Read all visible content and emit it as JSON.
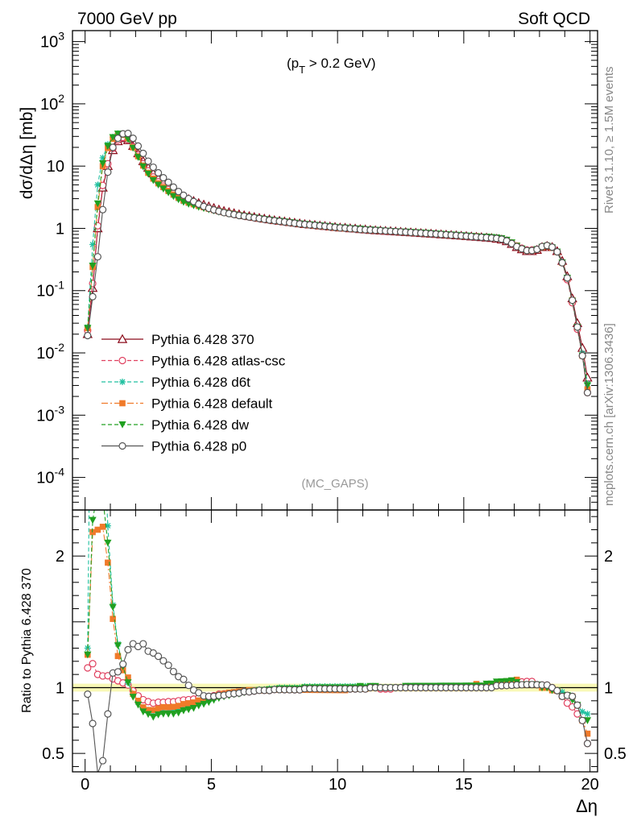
{
  "header": {
    "left": "7000 GeV pp",
    "right": "Soft QCD"
  },
  "side_labels": {
    "rivet": "Rivet 3.1.10, ≥ 1.5M events",
    "mcplots": "mcplots.cern.ch [arXiv:1306.3436]"
  },
  "chart_data": [
    {
      "type": "line",
      "panel": "main",
      "annotation": "(p_T > 0.2 GeV)",
      "watermark": "(MC_GAPS)",
      "ylabel": "dσ/dΔη [mb]",
      "yscale": "log",
      "ylim": [
        3e-05,
        1500
      ],
      "xlim": [
        -0.5,
        20.3
      ],
      "x_ticks": [
        0,
        5,
        10,
        15,
        20
      ],
      "y_ticks": [
        {
          "v": 0.0001,
          "label": "10^-4"
        },
        {
          "v": 0.001,
          "label": "10^-3"
        },
        {
          "v": 0.01,
          "label": "10^-2"
        },
        {
          "v": 0.1,
          "label": "10^-1"
        },
        {
          "v": 1,
          "label": "1"
        },
        {
          "v": 10,
          "label": "10"
        },
        {
          "v": 100,
          "label": "10^2"
        },
        {
          "v": 1000,
          "label": "10^3"
        }
      ],
      "x": [
        0.1,
        0.3,
        0.5,
        0.7,
        0.9,
        1.1,
        1.3,
        1.5,
        1.7,
        1.9,
        2.1,
        2.3,
        2.5,
        2.7,
        2.9,
        3.1,
        3.3,
        3.5,
        3.7,
        3.9,
        4.1,
        4.3,
        4.5,
        4.7,
        4.9,
        5.1,
        5.3,
        5.5,
        5.7,
        5.9,
        6.1,
        6.3,
        6.5,
        6.7,
        6.9,
        7.1,
        7.3,
        7.5,
        7.7,
        7.9,
        8.1,
        8.3,
        8.5,
        8.7,
        8.9,
        9.1,
        9.3,
        9.5,
        9.7,
        9.9,
        10.1,
        10.3,
        10.5,
        10.7,
        10.9,
        11.1,
        11.3,
        11.5,
        11.7,
        11.9,
        12.1,
        12.3,
        12.5,
        12.7,
        12.9,
        13.1,
        13.3,
        13.5,
        13.7,
        13.9,
        14.1,
        14.3,
        14.5,
        14.7,
        14.9,
        15.1,
        15.3,
        15.5,
        15.7,
        15.9,
        16.1,
        16.3,
        16.5,
        16.7,
        16.9,
        17.1,
        17.3,
        17.5,
        17.7,
        17.9,
        18.1,
        18.3,
        18.5,
        18.7,
        18.9,
        19.1,
        19.3,
        19.5,
        19.7,
        19.9
      ],
      "series": [
        {
          "name": "Pythia 6.428 370",
          "color": "#8b0a1a",
          "marker": "triangle-open",
          "dash": "solid",
          "values": [
            0.02,
            0.11,
            1.0,
            4.5,
            10,
            18,
            25,
            28,
            26,
            21,
            16,
            12,
            9.4,
            7.6,
            6.3,
            5.4,
            4.7,
            4.1,
            3.6,
            3.2,
            2.95,
            2.75,
            2.55,
            2.4,
            2.25,
            2.12,
            2.0,
            1.9,
            1.82,
            1.75,
            1.68,
            1.62,
            1.57,
            1.52,
            1.47,
            1.43,
            1.39,
            1.35,
            1.32,
            1.29,
            1.26,
            1.23,
            1.2,
            1.17,
            1.15,
            1.13,
            1.11,
            1.09,
            1.07,
            1.05,
            1.03,
            1.02,
            1.0,
            0.99,
            0.97,
            0.96,
            0.94,
            0.93,
            0.92,
            0.91,
            0.9,
            0.89,
            0.88,
            0.87,
            0.86,
            0.85,
            0.84,
            0.83,
            0.82,
            0.81,
            0.8,
            0.79,
            0.78,
            0.77,
            0.76,
            0.75,
            0.74,
            0.73,
            0.72,
            0.71,
            0.7,
            0.68,
            0.66,
            0.62,
            0.56,
            0.5,
            0.46,
            0.43,
            0.43,
            0.45,
            0.5,
            0.52,
            0.5,
            0.43,
            0.3,
            0.17,
            0.075,
            0.03,
            0.012,
            0.004
          ]
        },
        {
          "name": "Pythia 6.428 atlas-csc",
          "color": "#e0405f",
          "marker": "circle-open",
          "dash": "dashed",
          "values": [
            0.023,
            0.13,
            1.1,
            4.9,
            10.9,
            19.2,
            26.3,
            29.0,
            26.5,
            20.5,
            15.0,
            10.9,
            8.4,
            6.7,
            5.6,
            4.8,
            4.2,
            3.66,
            3.24,
            2.9,
            2.68,
            2.51,
            2.35,
            2.22,
            2.1,
            1.99,
            1.9,
            1.81,
            1.74,
            1.68,
            1.62,
            1.57,
            1.52,
            1.48,
            1.44,
            1.4,
            1.36,
            1.33,
            1.3,
            1.27,
            1.24,
            1.21,
            1.18,
            1.16,
            1.14,
            1.12,
            1.1,
            1.08,
            1.06,
            1.04,
            1.02,
            1.01,
            0.99,
            0.98,
            0.97,
            0.95,
            0.94,
            0.93,
            0.91,
            0.9,
            0.89,
            0.89,
            0.88,
            0.87,
            0.86,
            0.85,
            0.84,
            0.83,
            0.82,
            0.81,
            0.8,
            0.79,
            0.78,
            0.77,
            0.76,
            0.75,
            0.74,
            0.73,
            0.72,
            0.71,
            0.71,
            0.69,
            0.67,
            0.64,
            0.58,
            0.52,
            0.48,
            0.45,
            0.45,
            0.46,
            0.51,
            0.53,
            0.5,
            0.42,
            0.28,
            0.15,
            0.064,
            0.024,
            0.009,
            0.0023
          ]
        },
        {
          "name": "Pythia 6.428 d6t",
          "color": "#20c0a0",
          "marker": "star",
          "dash": "dashed",
          "values": [
            0.026,
            0.55,
            5.0,
            13.6,
            22.3,
            29.3,
            33.3,
            32.5,
            27.0,
            20.0,
            14.2,
            10.2,
            7.8,
            6.2,
            5.2,
            4.5,
            3.9,
            3.4,
            3.0,
            2.7,
            2.52,
            2.39,
            2.24,
            2.14,
            2.04,
            1.95,
            1.87,
            1.79,
            1.73,
            1.68,
            1.62,
            1.58,
            1.53,
            1.49,
            1.45,
            1.41,
            1.38,
            1.34,
            1.32,
            1.29,
            1.26,
            1.23,
            1.2,
            1.18,
            1.16,
            1.14,
            1.12,
            1.1,
            1.08,
            1.06,
            1.04,
            1.03,
            1.01,
            1.0,
            0.98,
            0.97,
            0.95,
            0.94,
            0.92,
            0.91,
            0.9,
            0.89,
            0.88,
            0.88,
            0.87,
            0.86,
            0.85,
            0.84,
            0.83,
            0.82,
            0.81,
            0.8,
            0.79,
            0.78,
            0.77,
            0.76,
            0.75,
            0.74,
            0.73,
            0.72,
            0.71,
            0.7,
            0.68,
            0.64,
            0.58,
            0.51,
            0.47,
            0.44,
            0.44,
            0.46,
            0.5,
            0.52,
            0.49,
            0.42,
            0.29,
            0.16,
            0.069,
            0.026,
            0.0098,
            0.0032
          ]
        },
        {
          "name": "Pythia 6.428 default",
          "color": "#f07a2a",
          "marker": "square",
          "dash": "dashdot",
          "values": [
            0.025,
            0.24,
            2.2,
            10.0,
            19.5,
            27.4,
            31.0,
            31.7,
            28.0,
            20.0,
            14.4,
            10.2,
            7.8,
            6.3,
            5.3,
            4.6,
            4.0,
            3.5,
            3.1,
            2.8,
            2.6,
            2.44,
            2.3,
            2.19,
            2.07,
            1.97,
            1.89,
            1.81,
            1.75,
            1.69,
            1.63,
            1.58,
            1.54,
            1.49,
            1.44,
            1.4,
            1.37,
            1.33,
            1.3,
            1.27,
            1.24,
            1.21,
            1.18,
            1.15,
            1.13,
            1.11,
            1.09,
            1.07,
            1.05,
            1.03,
            1.01,
            1.0,
            0.99,
            0.98,
            0.96,
            0.95,
            0.94,
            0.93,
            0.92,
            0.91,
            0.9,
            0.89,
            0.88,
            0.87,
            0.86,
            0.85,
            0.84,
            0.83,
            0.82,
            0.81,
            0.8,
            0.79,
            0.78,
            0.77,
            0.76,
            0.75,
            0.75,
            0.75,
            0.73,
            0.72,
            0.72,
            0.7,
            0.68,
            0.65,
            0.59,
            0.53,
            0.47,
            0.44,
            0.44,
            0.46,
            0.5,
            0.52,
            0.49,
            0.42,
            0.28,
            0.16,
            0.07,
            0.026,
            0.009,
            0.0026
          ]
        },
        {
          "name": "Pythia 6.428 dw",
          "color": "#20a020",
          "marker": "triangle-down",
          "dash": "dashed",
          "values": [
            0.025,
            0.25,
            2.5,
            11.0,
            21.0,
            29.0,
            33.0,
            32.5,
            27.0,
            19.5,
            13.9,
            9.8,
            7.5,
            5.9,
            5.0,
            4.32,
            3.76,
            3.28,
            2.91,
            2.64,
            2.46,
            2.32,
            2.2,
            2.1,
            2.0,
            1.92,
            1.84,
            1.77,
            1.71,
            1.66,
            1.6,
            1.56,
            1.52,
            1.48,
            1.44,
            1.4,
            1.37,
            1.33,
            1.31,
            1.28,
            1.25,
            1.22,
            1.19,
            1.17,
            1.15,
            1.13,
            1.11,
            1.09,
            1.07,
            1.05,
            1.03,
            1.02,
            1.0,
            0.99,
            0.98,
            0.96,
            0.95,
            0.94,
            0.92,
            0.91,
            0.9,
            0.89,
            0.88,
            0.88,
            0.87,
            0.86,
            0.85,
            0.84,
            0.83,
            0.82,
            0.81,
            0.8,
            0.79,
            0.78,
            0.77,
            0.76,
            0.75,
            0.74,
            0.73,
            0.73,
            0.72,
            0.71,
            0.69,
            0.65,
            0.59,
            0.52,
            0.47,
            0.44,
            0.44,
            0.46,
            0.5,
            0.52,
            0.49,
            0.42,
            0.28,
            0.16,
            0.068,
            0.026,
            0.009,
            0.003
          ]
        },
        {
          "name": "Pythia 6.428 p0",
          "color": "#555555",
          "marker": "circle-open",
          "dash": "solid",
          "values": [
            0.019,
            0.08,
            0.35,
            2.0,
            8.0,
            20.0,
            28.0,
            33.0,
            33.5,
            28.0,
            21.0,
            16.0,
            12.0,
            9.6,
            7.8,
            6.5,
            5.5,
            4.6,
            3.9,
            3.4,
            3.0,
            2.7,
            2.45,
            2.25,
            2.1,
            1.98,
            1.88,
            1.79,
            1.73,
            1.67,
            1.61,
            1.57,
            1.52,
            1.48,
            1.44,
            1.4,
            1.36,
            1.33,
            1.3,
            1.27,
            1.24,
            1.21,
            1.18,
            1.16,
            1.14,
            1.12,
            1.1,
            1.08,
            1.06,
            1.04,
            1.02,
            1.01,
            0.99,
            0.98,
            0.96,
            0.95,
            0.94,
            0.93,
            0.92,
            0.91,
            0.9,
            0.89,
            0.88,
            0.87,
            0.86,
            0.85,
            0.84,
            0.83,
            0.82,
            0.81,
            0.8,
            0.79,
            0.78,
            0.77,
            0.76,
            0.75,
            0.74,
            0.73,
            0.72,
            0.71,
            0.7,
            0.69,
            0.67,
            0.63,
            0.57,
            0.51,
            0.47,
            0.44,
            0.44,
            0.46,
            0.51,
            0.53,
            0.5,
            0.42,
            0.28,
            0.16,
            0.07,
            0.026,
            0.009,
            0.0023
          ]
        }
      ]
    },
    {
      "type": "line",
      "panel": "ratio",
      "ylabel": "Ratio to Pythia 6.428 370",
      "xlabel": "Δη",
      "ylim": [
        0.36,
        2.35
      ],
      "y_ticks": [
        {
          "v": 0.5,
          "label": "0.5"
        },
        {
          "v": 1,
          "label": "1"
        },
        {
          "v": 2,
          "label": "2"
        }
      ],
      "reference": 1
    }
  ],
  "colors": {
    "reference_band": "#f4f47a",
    "axes": "#000000"
  }
}
